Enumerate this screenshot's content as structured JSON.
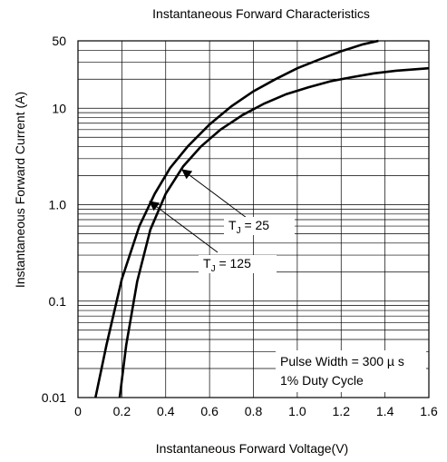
{
  "chart_data": {
    "type": "line",
    "title": "Instantaneous Forward Characteristics",
    "xlabel": "Instantaneous Forward Voltage(V)",
    "ylabel": "Instantaneous Forward Current (A)",
    "xlim": [
      0,
      1.6
    ],
    "ylim": [
      0.01,
      50
    ],
    "y_scale": "log",
    "grid": true,
    "x_ticks": [
      0,
      0.2,
      0.4,
      0.6,
      0.8,
      1.0,
      1.2,
      1.4,
      1.6
    ],
    "x_tick_labels": [
      "0",
      "0.2",
      "0.4",
      "0.6",
      "0.8",
      "1.0",
      "1.2",
      "1.4",
      "1.6"
    ],
    "y_ticks": [
      0.01,
      0.1,
      1.0,
      10,
      50
    ],
    "y_tick_labels": [
      "0.01",
      "0.1",
      "1.0",
      "10",
      "50"
    ],
    "series": [
      {
        "name_prefix": "T",
        "name_sub": "J",
        "name_suffix": " = 125",
        "x": [
          0.08,
          0.13,
          0.2,
          0.28,
          0.35,
          0.42,
          0.5,
          0.6,
          0.7,
          0.8,
          0.9,
          1.0,
          1.1,
          1.2,
          1.3,
          1.37
        ],
        "y": [
          0.01,
          0.035,
          0.17,
          0.6,
          1.3,
          2.4,
          4.0,
          6.8,
          10.5,
          15,
          20,
          26,
          32,
          39,
          46,
          50
        ]
      },
      {
        "name_prefix": "T",
        "name_sub": "J",
        "name_suffix": " = 25",
        "x": [
          0.19,
          0.22,
          0.27,
          0.33,
          0.4,
          0.48,
          0.56,
          0.65,
          0.75,
          0.85,
          0.95,
          1.05,
          1.15,
          1.25,
          1.35,
          1.45,
          1.6
        ],
        "y": [
          0.01,
          0.035,
          0.16,
          0.55,
          1.3,
          2.5,
          4.0,
          6.0,
          8.5,
          11.2,
          14,
          16.5,
          19,
          21,
          23,
          24.5,
          26
        ]
      }
    ],
    "annotations": [
      {
        "line1": "Pulse Width  = 300 µ s",
        "line2": "1% Duty Cycle"
      }
    ]
  }
}
